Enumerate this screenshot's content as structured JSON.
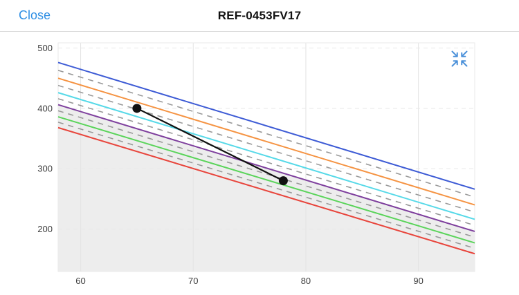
{
  "header": {
    "close_label": "Close",
    "title": "REF-0453FV17"
  },
  "icons": {
    "toolbar": "collapse-arrows-icon",
    "toolbar_color": "#4a90d9"
  },
  "chart_data": {
    "type": "line",
    "title": "",
    "xlabel": "",
    "ylabel": "",
    "x_range": [
      58,
      95
    ],
    "y_range": [
      129.5,
      508.6
    ],
    "x_ticks": [
      60,
      70,
      80,
      90
    ],
    "y_ticks": [
      200,
      300,
      400,
      500
    ],
    "grid": {
      "vertical_style": "solid",
      "vertical_color": "#e3e3e3",
      "horizontal_style": "dashed",
      "horizontal_color": "#e8e8e8",
      "border_color": "#eaeaea"
    },
    "shaded_region": {
      "description": "gray area below purple reference line",
      "color": "#ededed",
      "points": [
        [
          58,
          406
        ],
        [
          95,
          196
        ],
        [
          95,
          129.5
        ],
        [
          58,
          129.5
        ]
      ]
    },
    "reference_lines": [
      {
        "name": "ref-blue",
        "color": "#3d5bd5",
        "style": "solid",
        "width": 2,
        "points": [
          [
            58,
            476
          ],
          [
            95,
            266
          ]
        ]
      },
      {
        "name": "ref-dashed-1",
        "color": "#999999",
        "style": "dashed",
        "width": 1.6,
        "points": [
          [
            58,
            463
          ],
          [
            95,
            253
          ]
        ]
      },
      {
        "name": "ref-orange",
        "color": "#f59342",
        "style": "solid",
        "width": 2,
        "points": [
          [
            58,
            450
          ],
          [
            95,
            240
          ]
        ]
      },
      {
        "name": "ref-dashed-2",
        "color": "#999999",
        "style": "dashed",
        "width": 1.6,
        "points": [
          [
            58,
            438
          ],
          [
            95,
            228
          ]
        ]
      },
      {
        "name": "ref-cyan",
        "color": "#56d9e8",
        "style": "solid",
        "width": 2,
        "points": [
          [
            58,
            426
          ],
          [
            95,
            216
          ]
        ]
      },
      {
        "name": "ref-dashed-3",
        "color": "#999999",
        "style": "dashed",
        "width": 1.6,
        "points": [
          [
            58,
            416
          ],
          [
            95,
            206
          ]
        ]
      },
      {
        "name": "ref-purple",
        "color": "#7e3f9d",
        "style": "solid",
        "width": 2,
        "points": [
          [
            58,
            406
          ],
          [
            95,
            196
          ]
        ]
      },
      {
        "name": "ref-dashed-4",
        "color": "#999999",
        "style": "dashed",
        "width": 1.6,
        "points": [
          [
            58,
            396
          ],
          [
            95,
            186.5
          ]
        ]
      },
      {
        "name": "ref-green",
        "color": "#5ad45a",
        "style": "solid",
        "width": 2,
        "points": [
          [
            58,
            386
          ],
          [
            95,
            177
          ]
        ]
      },
      {
        "name": "ref-dashed-5",
        "color": "#999999",
        "style": "dashed",
        "width": 1.6,
        "points": [
          [
            58,
            377
          ],
          [
            95,
            168
          ]
        ]
      },
      {
        "name": "ref-red",
        "color": "#e8453c",
        "style": "solid",
        "width": 2,
        "points": [
          [
            58,
            368
          ],
          [
            95,
            159
          ]
        ]
      }
    ],
    "series": [
      {
        "name": "measurements",
        "color": "#111111",
        "marker": "circle",
        "marker_radius": 6.5,
        "line_width": 2.2,
        "points": [
          [
            65,
            400
          ],
          [
            78,
            280
          ]
        ]
      }
    ],
    "tick_label_color": "#3d3d3d",
    "tick_label_size": 13
  }
}
